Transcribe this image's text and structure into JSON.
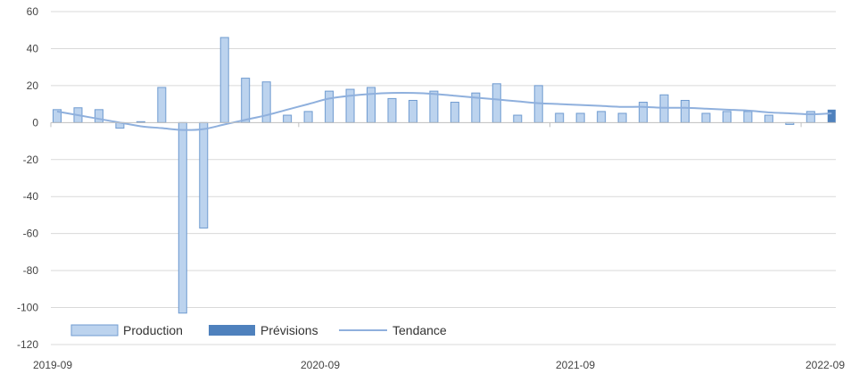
{
  "chart_data": {
    "type": "bar",
    "ylim": [
      -120,
      60
    ],
    "yticks": [
      60,
      40,
      20,
      0,
      -20,
      -40,
      -60,
      -80,
      -100,
      -120
    ],
    "xtick_labels": [
      "2019-09",
      "2020-09",
      "2021-09",
      "2022-09"
    ],
    "grid": true,
    "legend_position": "bottom-left",
    "colors": {
      "production": "#bcd3ee",
      "production_edge": "#6f9bd0",
      "forecast": "#4f81bd",
      "trend": "#8fb0dd",
      "grid": "#d9d9d9"
    },
    "series": [
      {
        "name": "Production",
        "kind": "bar",
        "values": [
          7,
          8,
          7,
          -3,
          0.5,
          19,
          -103,
          -57,
          46,
          24,
          22,
          4,
          6,
          17,
          18,
          19,
          13,
          12,
          17,
          11,
          16,
          21,
          4,
          20,
          5,
          5,
          6,
          5,
          11,
          15,
          12,
          5,
          6,
          6,
          4,
          -1,
          6,
          null
        ]
      },
      {
        "name": "Prévisions",
        "kind": "bar",
        "values": [
          null,
          null,
          null,
          null,
          null,
          null,
          null,
          null,
          null,
          null,
          null,
          null,
          null,
          null,
          null,
          null,
          null,
          null,
          null,
          null,
          null,
          null,
          null,
          null,
          null,
          null,
          null,
          null,
          null,
          null,
          null,
          null,
          null,
          null,
          null,
          null,
          null,
          7
        ]
      },
      {
        "name": "Tendance",
        "kind": "line",
        "values": [
          6,
          4,
          2,
          0,
          -2,
          -3,
          -4,
          -3.5,
          -1,
          1.5,
          4,
          7,
          10,
          13,
          14.5,
          15.5,
          16,
          16,
          15.5,
          14.5,
          13.5,
          12.5,
          11.5,
          10.5,
          10,
          9.5,
          9,
          8.5,
          8.5,
          8,
          8,
          7.5,
          7,
          6.5,
          5.5,
          5,
          4.5,
          5
        ]
      }
    ]
  }
}
